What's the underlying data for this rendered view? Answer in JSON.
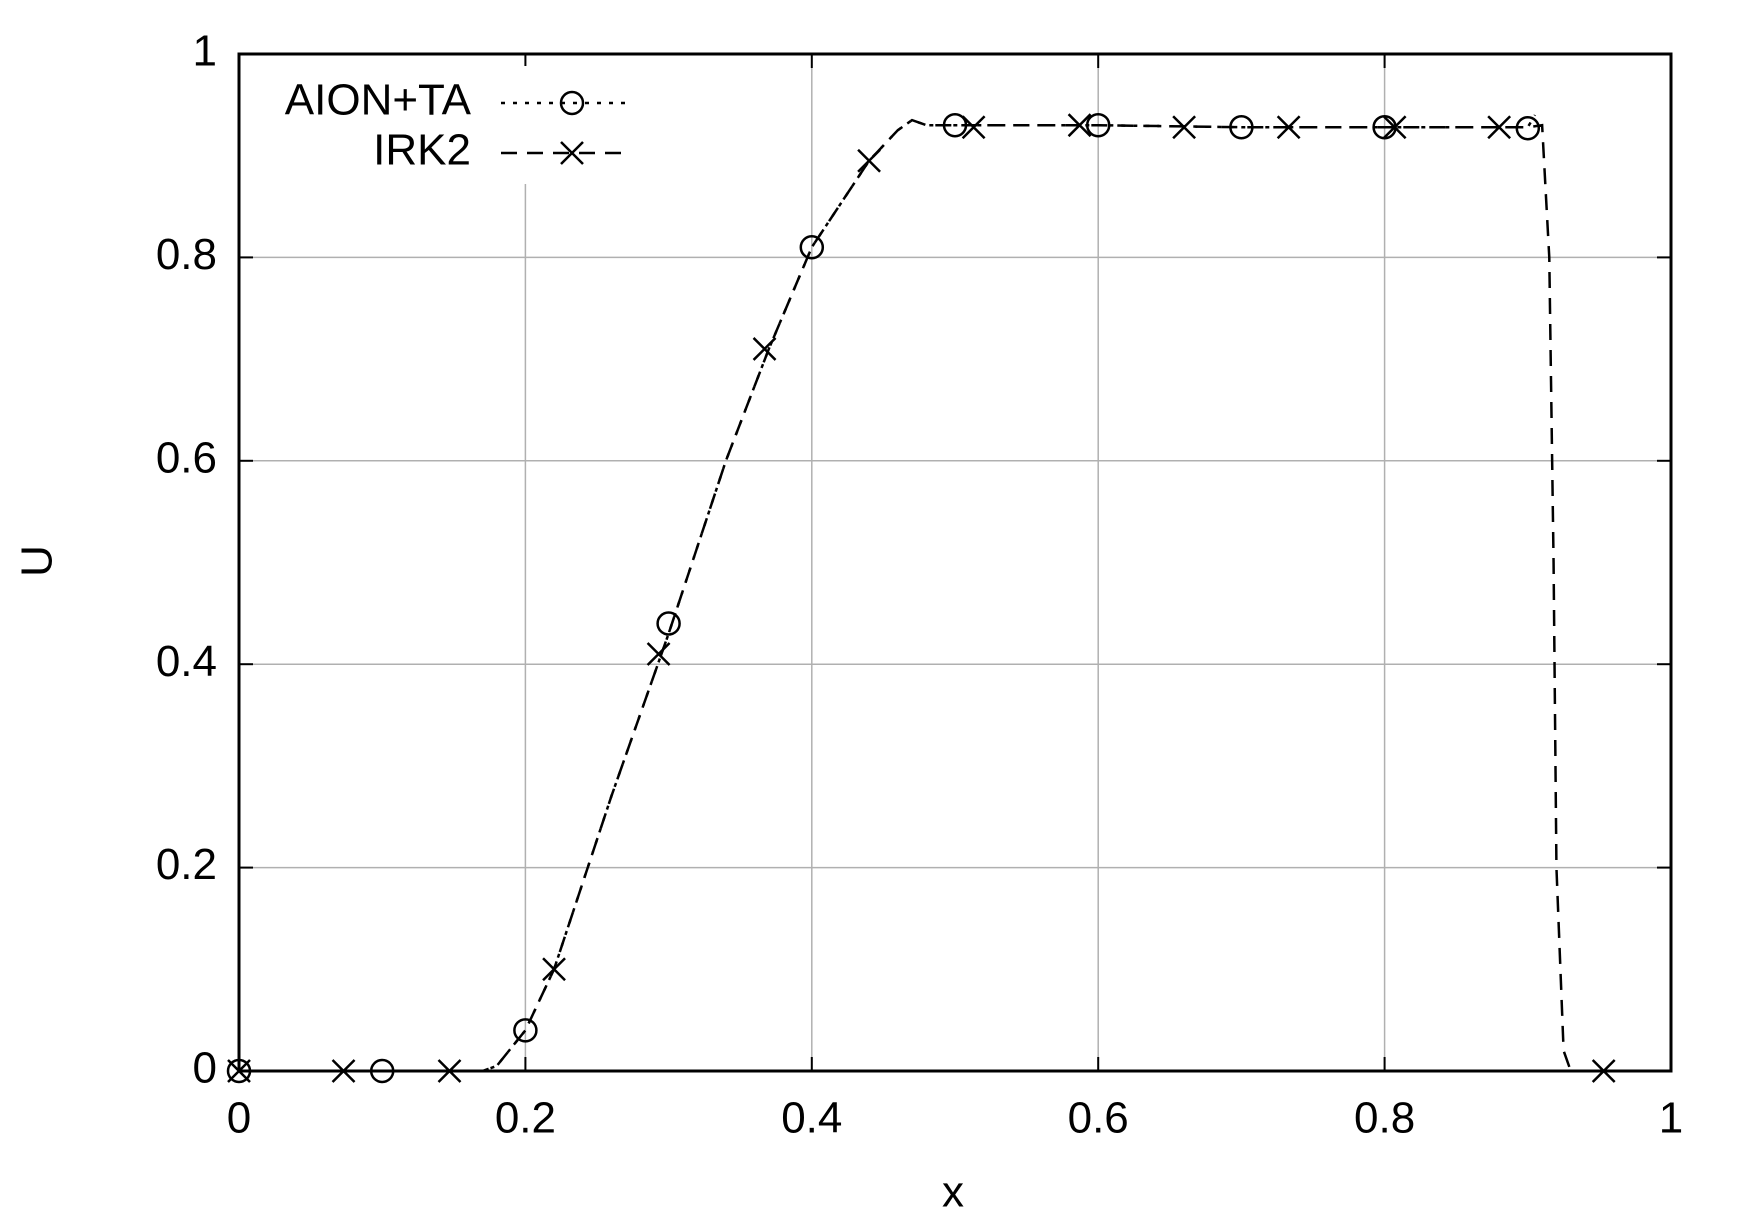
{
  "chart_data": {
    "type": "line",
    "xlabel": "x",
    "ylabel": "U",
    "xlim": [
      0,
      1
    ],
    "ylim": [
      0,
      1
    ],
    "xticks": [
      0,
      0.2,
      0.4,
      0.6,
      0.8,
      1
    ],
    "yticks": [
      0,
      0.2,
      0.4,
      0.6,
      0.8,
      1
    ],
    "grid": true,
    "legend": "top-left",
    "series": [
      {
        "name": "AION+TA",
        "color": "#000000",
        "dash": "dotted",
        "marker": "circle",
        "x": [
          0,
          0.15,
          0.17,
          0.18,
          0.2,
          0.22,
          0.26,
          0.3,
          0.34,
          0.37,
          0.4,
          0.44,
          0.46,
          0.47,
          0.48,
          0.5,
          0.6,
          0.7,
          0.8,
          0.9,
          0.905
        ],
        "values": [
          0,
          0,
          0,
          0.005,
          0.04,
          0.1,
          0.27,
          0.43,
          0.6,
          0.71,
          0.81,
          0.895,
          0.925,
          0.935,
          0.93,
          0.93,
          0.93,
          0.928,
          0.928,
          0.928,
          0.94
        ],
        "points": {
          "x": [
            0,
            0.1,
            0.2,
            0.3,
            0.4,
            0.5,
            0.6,
            0.7,
            0.8,
            0.9
          ],
          "values": [
            0,
            0,
            0.04,
            0.44,
            0.81,
            0.93,
            0.93,
            0.928,
            0.928,
            0.927
          ]
        }
      },
      {
        "name": "IRK2",
        "color": "#000000",
        "dash": "dashed",
        "marker": "cross",
        "x": [
          0,
          0.15,
          0.17,
          0.18,
          0.2,
          0.22,
          0.26,
          0.3,
          0.34,
          0.37,
          0.4,
          0.44,
          0.46,
          0.47,
          0.48,
          0.5,
          0.6,
          0.7,
          0.8,
          0.9,
          0.91,
          0.915,
          0.918,
          0.92,
          0.925,
          0.93,
          1
        ],
        "values": [
          0,
          0,
          0,
          0.005,
          0.04,
          0.1,
          0.27,
          0.43,
          0.6,
          0.71,
          0.81,
          0.895,
          0.925,
          0.935,
          0.93,
          0.93,
          0.93,
          0.928,
          0.928,
          0.928,
          0.93,
          0.8,
          0.5,
          0.2,
          0.02,
          0,
          0
        ],
        "points": {
          "x": [
            0,
            0.073,
            0.147,
            0.22,
            0.293,
            0.367,
            0.44,
            0.513,
            0.587,
            0.66,
            0.733,
            0.807,
            0.88,
            0.953
          ],
          "values": [
            0,
            0,
            0,
            0.1,
            0.41,
            0.71,
            0.895,
            0.928,
            0.93,
            0.928,
            0.928,
            0.928,
            0.928,
            0
          ]
        }
      }
    ]
  }
}
